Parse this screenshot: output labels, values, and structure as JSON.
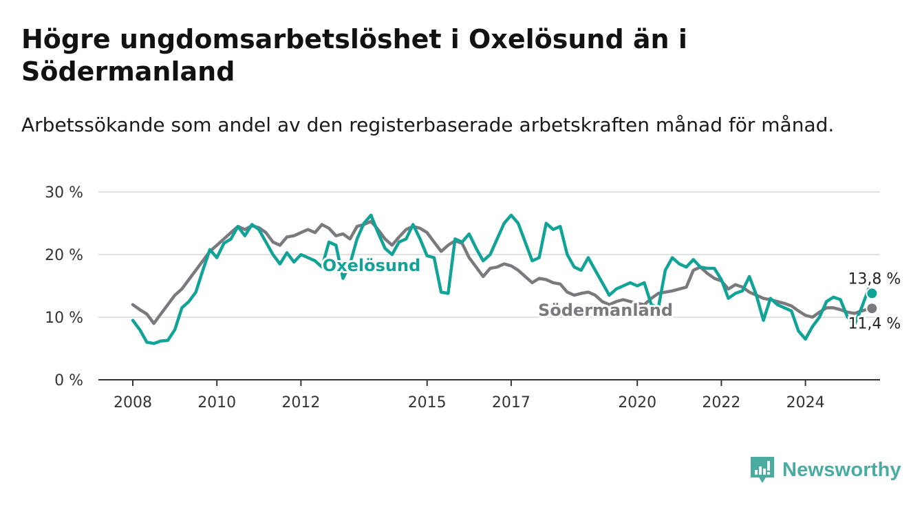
{
  "header": {
    "title": "Högre ungdomsarbetslöshet i Oxelösund än i Södermanland",
    "subtitle": "Arbetssökande som andel av den registerbaserade arbetskraften månad för månad."
  },
  "brand": {
    "name": "Newsworthy",
    "logo_icon": "bar-chart-exclamation-icon",
    "color": "#4aaba1"
  },
  "colors": {
    "oxelosund": "#11a398",
    "sodermanland": "#7a7a7e",
    "grid": "#d9d9d9",
    "axis": "#333333"
  },
  "chart_data": {
    "type": "line",
    "title": "Högre ungdomsarbetslöshet i Oxelösund än i Södermanland",
    "subtitle": "Arbetssökande som andel av den registerbaserade arbetskraften månad för månad.",
    "xlabel": "",
    "ylabel": "",
    "x_ticks": [
      "2008",
      "2010",
      "2012",
      "2015",
      "2017",
      "2020",
      "2022",
      "2024"
    ],
    "y_ticks": [
      "0 %",
      "10 %",
      "20 %",
      "30 %"
    ],
    "y_tick_values": [
      0,
      10,
      20,
      30
    ],
    "ylim": [
      0,
      30
    ],
    "xlim": [
      "2007-11",
      "2025-11"
    ],
    "grid": "horizontal",
    "legend": "inline labels",
    "series": [
      {
        "name": "Oxelösund",
        "color": "#11a398",
        "inline_label": "Oxelösund",
        "end_label": "13,8 %",
        "last_value": 13.8,
        "points": [
          [
            "2008-01",
            9.5
          ],
          [
            "2008-03",
            8.0
          ],
          [
            "2008-05",
            6.0
          ],
          [
            "2008-07",
            5.8
          ],
          [
            "2008-09",
            6.2
          ],
          [
            "2008-11",
            6.3
          ],
          [
            "2009-01",
            8.0
          ],
          [
            "2009-03",
            11.5
          ],
          [
            "2009-05",
            12.5
          ],
          [
            "2009-07",
            14.0
          ],
          [
            "2009-09",
            17.5
          ],
          [
            "2009-11",
            20.8
          ],
          [
            "2010-01",
            19.5
          ],
          [
            "2010-03",
            21.8
          ],
          [
            "2010-05",
            22.5
          ],
          [
            "2010-07",
            24.5
          ],
          [
            "2010-09",
            23.0
          ],
          [
            "2010-11",
            24.8
          ],
          [
            "2011-01",
            24.0
          ],
          [
            "2011-03",
            22.0
          ],
          [
            "2011-05",
            20.0
          ],
          [
            "2011-07",
            18.5
          ],
          [
            "2011-09",
            20.3
          ],
          [
            "2011-11",
            18.8
          ],
          [
            "2012-01",
            20.0
          ],
          [
            "2012-03",
            19.5
          ],
          [
            "2012-05",
            19.0
          ],
          [
            "2012-07",
            18.0
          ],
          [
            "2012-09",
            22.0
          ],
          [
            "2012-11",
            21.5
          ],
          [
            "2013-01",
            16.2
          ],
          [
            "2013-03",
            18.5
          ],
          [
            "2013-05",
            22.5
          ],
          [
            "2013-07",
            25.0
          ],
          [
            "2013-09",
            26.3
          ],
          [
            "2013-11",
            23.5
          ],
          [
            "2014-01",
            21.0
          ],
          [
            "2014-03",
            20.0
          ],
          [
            "2014-05",
            22.0
          ],
          [
            "2014-07",
            22.5
          ],
          [
            "2014-09",
            24.8
          ],
          [
            "2014-11",
            22.5
          ],
          [
            "2015-01",
            19.8
          ],
          [
            "2015-03",
            19.5
          ],
          [
            "2015-05",
            14.0
          ],
          [
            "2015-07",
            13.8
          ],
          [
            "2015-09",
            22.5
          ],
          [
            "2015-11",
            22.0
          ],
          [
            "2016-01",
            23.3
          ],
          [
            "2016-03",
            21.0
          ],
          [
            "2016-05",
            19.0
          ],
          [
            "2016-07",
            20.0
          ],
          [
            "2016-09",
            22.5
          ],
          [
            "2016-11",
            25.0
          ],
          [
            "2017-01",
            26.3
          ],
          [
            "2017-03",
            25.0
          ],
          [
            "2017-05",
            22.0
          ],
          [
            "2017-07",
            19.0
          ],
          [
            "2017-09",
            19.5
          ],
          [
            "2017-11",
            25.0
          ],
          [
            "2018-01",
            24.0
          ],
          [
            "2018-03",
            24.5
          ],
          [
            "2018-05",
            20.0
          ],
          [
            "2018-07",
            18.0
          ],
          [
            "2018-09",
            17.5
          ],
          [
            "2018-11",
            19.5
          ],
          [
            "2019-01",
            17.5
          ],
          [
            "2019-03",
            15.5
          ],
          [
            "2019-05",
            13.5
          ],
          [
            "2019-07",
            14.5
          ],
          [
            "2019-09",
            15.0
          ],
          [
            "2019-11",
            15.5
          ],
          [
            "2020-01",
            15.0
          ],
          [
            "2020-03",
            15.5
          ],
          [
            "2020-05",
            12.0
          ],
          [
            "2020-07",
            11.5
          ],
          [
            "2020-09",
            17.5
          ],
          [
            "2020-11",
            19.5
          ],
          [
            "2021-01",
            18.5
          ],
          [
            "2021-03",
            18.0
          ],
          [
            "2021-05",
            19.2
          ],
          [
            "2021-07",
            18.0
          ],
          [
            "2021-09",
            17.8
          ],
          [
            "2021-11",
            17.8
          ],
          [
            "2022-01",
            16.0
          ],
          [
            "2022-03",
            13.0
          ],
          [
            "2022-05",
            13.8
          ],
          [
            "2022-07",
            14.2
          ],
          [
            "2022-09",
            16.5
          ],
          [
            "2022-11",
            13.5
          ],
          [
            "2023-01",
            9.5
          ],
          [
            "2023-03",
            13.0
          ],
          [
            "2023-05",
            12.0
          ],
          [
            "2023-07",
            11.5
          ],
          [
            "2023-09",
            11.0
          ],
          [
            "2023-11",
            7.8
          ],
          [
            "2024-01",
            6.5
          ],
          [
            "2024-03",
            8.5
          ],
          [
            "2024-05",
            10.0
          ],
          [
            "2024-07",
            12.5
          ],
          [
            "2024-09",
            13.2
          ],
          [
            "2024-11",
            12.8
          ],
          [
            "2025-01",
            10.0
          ],
          [
            "2025-03",
            8.8
          ],
          [
            "2025-05",
            11.5
          ],
          [
            "2025-07",
            14.5
          ],
          [
            "2025-08",
            13.8
          ]
        ]
      },
      {
        "name": "Södermanland",
        "color": "#7a7a7e",
        "inline_label": "Södermanland",
        "end_label": "11,4 %",
        "last_value": 11.4,
        "points": [
          [
            "2008-01",
            12.0
          ],
          [
            "2008-03",
            11.2
          ],
          [
            "2008-05",
            10.5
          ],
          [
            "2008-07",
            9.0
          ],
          [
            "2008-09",
            10.5
          ],
          [
            "2008-11",
            12.0
          ],
          [
            "2009-01",
            13.5
          ],
          [
            "2009-03",
            14.5
          ],
          [
            "2009-05",
            16.0
          ],
          [
            "2009-07",
            17.5
          ],
          [
            "2009-09",
            19.0
          ],
          [
            "2009-11",
            20.5
          ],
          [
            "2010-01",
            21.5
          ],
          [
            "2010-03",
            22.5
          ],
          [
            "2010-05",
            23.5
          ],
          [
            "2010-07",
            24.5
          ],
          [
            "2010-09",
            24.0
          ],
          [
            "2010-11",
            24.6
          ],
          [
            "2011-01",
            24.3
          ],
          [
            "2011-03",
            23.5
          ],
          [
            "2011-05",
            22.0
          ],
          [
            "2011-07",
            21.5
          ],
          [
            "2011-09",
            22.8
          ],
          [
            "2011-11",
            23.0
          ],
          [
            "2012-01",
            23.5
          ],
          [
            "2012-03",
            24.0
          ],
          [
            "2012-05",
            23.5
          ],
          [
            "2012-07",
            24.8
          ],
          [
            "2012-09",
            24.2
          ],
          [
            "2012-11",
            23.0
          ],
          [
            "2013-01",
            23.3
          ],
          [
            "2013-03",
            22.5
          ],
          [
            "2013-05",
            24.5
          ],
          [
            "2013-07",
            24.8
          ],
          [
            "2013-09",
            25.3
          ],
          [
            "2013-11",
            24.0
          ],
          [
            "2014-01",
            22.5
          ],
          [
            "2014-03",
            21.5
          ],
          [
            "2014-05",
            22.8
          ],
          [
            "2014-07",
            24.0
          ],
          [
            "2014-09",
            24.5
          ],
          [
            "2014-11",
            24.2
          ],
          [
            "2015-01",
            23.5
          ],
          [
            "2015-03",
            22.0
          ],
          [
            "2015-05",
            20.5
          ],
          [
            "2015-07",
            21.5
          ],
          [
            "2015-09",
            22.2
          ],
          [
            "2015-11",
            21.8
          ],
          [
            "2016-01",
            19.5
          ],
          [
            "2016-03",
            18.0
          ],
          [
            "2016-05",
            16.5
          ],
          [
            "2016-07",
            17.8
          ],
          [
            "2016-09",
            18.0
          ],
          [
            "2016-11",
            18.5
          ],
          [
            "2017-01",
            18.2
          ],
          [
            "2017-03",
            17.5
          ],
          [
            "2017-05",
            16.5
          ],
          [
            "2017-07",
            15.5
          ],
          [
            "2017-09",
            16.2
          ],
          [
            "2017-11",
            16.0
          ],
          [
            "2018-01",
            15.5
          ],
          [
            "2018-03",
            15.3
          ],
          [
            "2018-05",
            14.0
          ],
          [
            "2018-07",
            13.5
          ],
          [
            "2018-09",
            13.8
          ],
          [
            "2018-11",
            14.0
          ],
          [
            "2019-01",
            13.5
          ],
          [
            "2019-03",
            12.5
          ],
          [
            "2019-05",
            12.0
          ],
          [
            "2019-07",
            12.5
          ],
          [
            "2019-09",
            12.8
          ],
          [
            "2019-11",
            12.5
          ],
          [
            "2020-01",
            12.2
          ],
          [
            "2020-03",
            12.0
          ],
          [
            "2020-05",
            13.0
          ],
          [
            "2020-07",
            13.8
          ],
          [
            "2020-09",
            14.0
          ],
          [
            "2020-11",
            14.2
          ],
          [
            "2021-01",
            14.5
          ],
          [
            "2021-03",
            14.8
          ],
          [
            "2021-05",
            17.5
          ],
          [
            "2021-07",
            18.0
          ],
          [
            "2021-09",
            17.0
          ],
          [
            "2021-11",
            16.2
          ],
          [
            "2022-01",
            15.8
          ],
          [
            "2022-03",
            14.5
          ],
          [
            "2022-05",
            15.2
          ],
          [
            "2022-07",
            14.8
          ],
          [
            "2022-09",
            14.0
          ],
          [
            "2022-11",
            13.5
          ],
          [
            "2023-01",
            13.0
          ],
          [
            "2023-03",
            12.8
          ],
          [
            "2023-05",
            12.5
          ],
          [
            "2023-07",
            12.2
          ],
          [
            "2023-09",
            11.8
          ],
          [
            "2023-11",
            11.0
          ],
          [
            "2024-01",
            10.3
          ],
          [
            "2024-03",
            10.0
          ],
          [
            "2024-05",
            10.8
          ],
          [
            "2024-07",
            11.5
          ],
          [
            "2024-09",
            11.5
          ],
          [
            "2024-11",
            11.2
          ],
          [
            "2025-01",
            10.8
          ],
          [
            "2025-03",
            10.6
          ],
          [
            "2025-05",
            11.0
          ],
          [
            "2025-07",
            11.3
          ],
          [
            "2025-08",
            11.4
          ]
        ]
      }
    ]
  }
}
